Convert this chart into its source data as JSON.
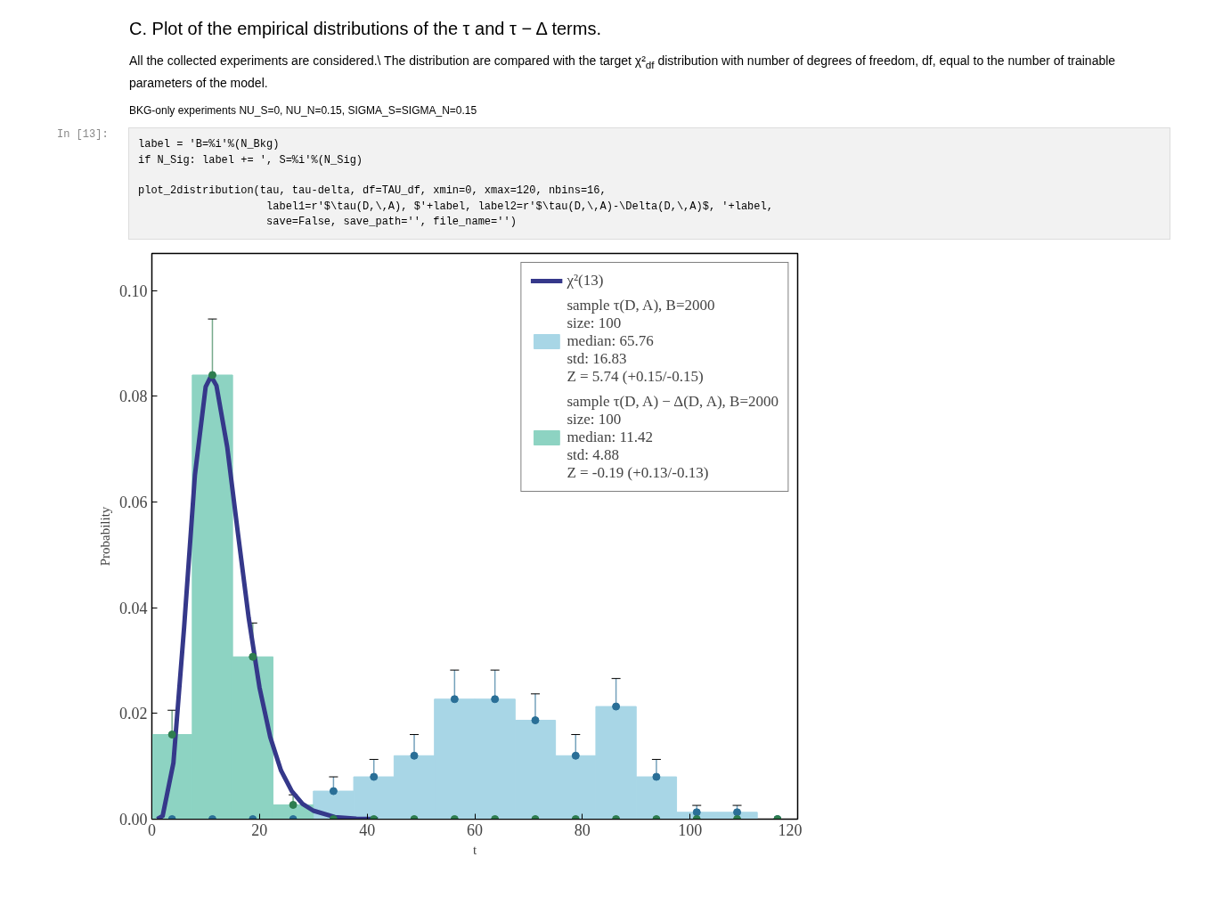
{
  "chart_data": {
    "type": "histogram",
    "title": "C. Plot of the empirical distributions of the τ and τ − Δ terms.",
    "subtitle": "All the collected experiments are considered.\\ The distribution are compared with the target χ²$_{df}$ distribution with number of degrees of freedom, df, equal to the number of trainable parameters of the model.",
    "annotations": [
      "BKG-only experiments NU_S=0, NU_N=0.15, SIGMA_S=SIGMA_N=0.15",
      "In [13]:",
      "label = 'B=%i'%(N_Bkg)\nif N_Sig: label += ', S=%i'%(N_Sig)\n\nplot_2distribution(tau, tau-delta, df=TAU_df, xmin=0, xmax=120, nbins=16,\n                    label1=r'$\\tau(D,\\,A), $'+label, label2=r'$\\tau(D,\\,A)-\\Delta(D,\\,A)$, '+label,\n                    save=False, save_path='', file_name='')"
    ],
    "xlabel": "t",
    "ylabel": "Probability",
    "bins": [
      0,
      7.5,
      15,
      22.5,
      30,
      37.5,
      45,
      52.5,
      60,
      67.5,
      75,
      82.5,
      90,
      97.5,
      105,
      112.5,
      120
    ],
    "xlim": [
      0,
      120
    ],
    "xticks": [
      0,
      20,
      40,
      60,
      80,
      100,
      120
    ],
    "ylim": [
      0,
      0.107
    ],
    "yticks": [
      {
        "value": 0,
        "label": "0.00"
      },
      {
        "value": 0.02,
        "label": "0.02"
      },
      {
        "value": 0.04,
        "label": "0.04"
      },
      {
        "value": 0.06,
        "label": "0.06"
      },
      {
        "value": 0.08,
        "label": "0.08"
      },
      {
        "value": 0.1,
        "label": "0.10"
      }
    ],
    "grid": false,
    "legend": "top right",
    "series": [
      {
        "name": "χ²(13)",
        "type": "line",
        "color": "#35388a",
        "x": [
          1,
          2,
          4,
          6,
          8,
          10,
          11,
          12,
          14,
          16,
          18,
          20,
          22,
          24,
          26,
          28,
          30,
          34,
          38,
          42
        ],
        "values": [
          0,
          0.0006,
          0.0106,
          0.0364,
          0.0651,
          0.0818,
          0.0838,
          0.082,
          0.0704,
          0.054,
          0.038,
          0.0249,
          0.0155,
          0.0092,
          0.0053,
          0.0029,
          0.0016,
          0.0004,
          0.0001,
          0
        ]
      },
      {
        "name": "sample τ(D, A), B=2000\nsize: 100\nmedian: 65.76\nstd: 16.83\nZ = 5.74 (+0.15/-0.15)",
        "color": "#a8d6e6",
        "values": [
          0,
          0,
          0,
          0,
          0.0053,
          0.008,
          0.012,
          0.0227,
          0.0227,
          0.0187,
          0.012,
          0.0213,
          0.008,
          0.0013,
          0.0013,
          0
        ]
      },
      {
        "name": "sample τ(D, A) − Δ(D, A), B=2000\nsize: 100\nmedian: 11.42\nstd: 4.88\nZ = -0.19 (+0.13/-0.13)",
        "color": "#8dd3c2",
        "values": [
          0.016,
          0.084,
          0.0307,
          0.0027,
          0,
          0,
          0,
          0,
          0,
          0,
          0,
          0,
          0,
          0,
          0,
          0
        ]
      },
      {
        "type": "scatter",
        "color": "#2a6f97",
        "marker": "circle",
        "x": [
          3.75,
          11.25,
          18.75,
          26.25,
          33.75,
          41.25,
          48.75,
          56.25,
          63.75,
          71.25,
          78.75,
          86.25,
          93.75,
          101.25,
          108.75,
          116.25
        ],
        "values": [
          0,
          0,
          0,
          0,
          0.0053,
          0.008,
          0.012,
          0.0227,
          0.0227,
          0.0187,
          0.012,
          0.0213,
          0.008,
          0.0013,
          0.0013,
          0
        ],
        "errors": [
          null,
          null,
          null,
          null,
          0.0027,
          0.0033,
          0.004,
          0.0055,
          0.0055,
          0.005,
          0.004,
          0.0053,
          0.0033,
          0.0013,
          0.0013,
          null
        ]
      },
      {
        "type": "scatter",
        "color": "#2e7d4f",
        "marker": "circle",
        "x": [
          3.75,
          11.25,
          18.75,
          26.25,
          33.75,
          41.25,
          48.75,
          56.25,
          63.75,
          71.25,
          78.75,
          86.25,
          93.75,
          101.25,
          108.75,
          116.25
        ],
        "values": [
          0.016,
          0.084,
          0.0307,
          0.0027,
          0,
          0,
          0,
          0,
          0,
          0,
          0,
          0,
          0,
          0,
          0,
          0
        ],
        "errors": [
          0.0046,
          0.0106,
          0.0064,
          0.0019,
          null,
          null,
          null,
          null,
          null,
          null,
          null,
          null,
          null,
          null,
          null,
          null
        ]
      }
    ]
  }
}
